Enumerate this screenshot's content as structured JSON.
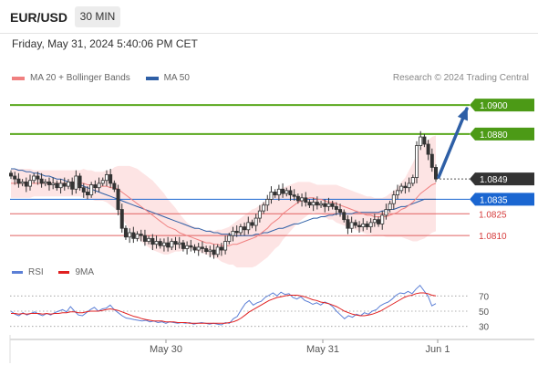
{
  "header": {
    "symbol": "EUR/USD",
    "timeframe": "30 MIN"
  },
  "datetime": "Friday, May 31, 2024 5:40:06 PM CET",
  "legend": {
    "ma20_label": "MA 20 + Bollinger Bands",
    "ma50_label": "MA 50",
    "ma20_color": "#f08080",
    "ma50_color": "#2e5fa6"
  },
  "credit": "Research © 2024 Trading Central",
  "rsi_legend": {
    "rsi_label": "RSI",
    "ma_label": "9MA",
    "rsi_color": "#5b7fd6",
    "ma_color": "#e02020"
  },
  "chart_data": [
    {
      "type": "candlestick",
      "title": "EUR/USD",
      "x_ticks": [
        "May 30",
        "May 31",
        "Jun 1"
      ],
      "ylim": [
        1.0795,
        1.0912
      ],
      "levels": [
        {
          "value": 1.09,
          "label": "1.0900",
          "style": "resistance",
          "color": "#5aa81e"
        },
        {
          "value": 1.088,
          "label": "1.0880",
          "style": "resistance",
          "color": "#5aa81e"
        },
        {
          "value": 1.0849,
          "label": "1.0849",
          "style": "current",
          "color": "#333333"
        },
        {
          "value": 1.0835,
          "label": "1.0835",
          "style": "pivot",
          "color": "#1a66d1"
        },
        {
          "value": 1.0825,
          "label": "1.0825",
          "style": "support",
          "color": "#e06060"
        },
        {
          "value": 1.081,
          "label": "1.0810",
          "style": "support",
          "color": "#e06060"
        }
      ],
      "closes": [
        1.0851,
        1.0849,
        1.0846,
        1.0847,
        1.0844,
        1.0848,
        1.0851,
        1.0849,
        1.0846,
        1.0847,
        1.0845,
        1.0846,
        1.0843,
        1.0846,
        1.0844,
        1.0847,
        1.0842,
        1.0851,
        1.0843,
        1.084,
        1.0838,
        1.0845,
        1.0843,
        1.0846,
        1.0848,
        1.0852,
        1.0846,
        1.0842,
        1.0828,
        1.0815,
        1.0809,
        1.0812,
        1.0808,
        1.0811,
        1.081,
        1.0806,
        1.0808,
        1.0804,
        1.0806,
        1.0803,
        1.0805,
        1.0802,
        1.0806,
        1.0804,
        1.0805,
        1.0801,
        1.0803,
        1.0802,
        1.08,
        1.0802,
        1.0801,
        1.0799,
        1.08,
        1.0797,
        1.0802,
        1.08,
        1.0806,
        1.081,
        1.0813,
        1.0812,
        1.0816,
        1.0814,
        1.0819,
        1.0817,
        1.0822,
        1.0827,
        1.0831,
        1.0835,
        1.084,
        1.0838,
        1.0842,
        1.0839,
        1.0841,
        1.0838,
        1.0837,
        1.0834,
        1.0836,
        1.0833,
        1.0831,
        1.0833,
        1.0831,
        1.0832,
        1.083,
        1.0832,
        1.083,
        1.0828,
        1.0826,
        1.0821,
        1.0815,
        1.0819,
        1.0817,
        1.0816,
        1.0818,
        1.0816,
        1.0819,
        1.0821,
        1.0818,
        1.0824,
        1.0828,
        1.0832,
        1.0838,
        1.0841,
        1.0844,
        1.0843,
        1.0846,
        1.085,
        1.0872,
        1.0878,
        1.0873,
        1.0866,
        1.0857,
        1.0849
      ],
      "ma20": [
        1.0846,
        1.0846,
        1.0846,
        1.0846,
        1.0846,
        1.0846,
        1.0846,
        1.0846,
        1.0846,
        1.0846,
        1.0846,
        1.0846,
        1.0846,
        1.0846,
        1.0846,
        1.0846,
        1.0846,
        1.0846,
        1.0846,
        1.0846,
        1.0845,
        1.0845,
        1.0844,
        1.0844,
        1.0844,
        1.0844,
        1.0843,
        1.0843,
        1.0842,
        1.084,
        1.0838,
        1.0836,
        1.0834,
        1.0832,
        1.083,
        1.0828,
        1.0826,
        1.0824,
        1.0822,
        1.082,
        1.0818,
        1.0816,
        1.0815,
        1.0814,
        1.0812,
        1.0811,
        1.081,
        1.0809,
        1.0808,
        1.0807,
        1.0806,
        1.0805,
        1.0805,
        1.0804,
        1.0804,
        1.0803,
        1.0803,
        1.0803,
        1.0804,
        1.0804,
        1.0805,
        1.0806,
        1.0807,
        1.0808,
        1.0809,
        1.0811,
        1.0813,
        1.0815,
        1.0818,
        1.082,
        1.0822,
        1.0825,
        1.0827,
        1.0829,
        1.0831,
        1.0833,
        1.0834,
        1.0835,
        1.0836,
        1.0836,
        1.0835,
        1.0835,
        1.0834,
        1.0833,
        1.0833,
        1.0832,
        1.0831,
        1.083,
        1.0829,
        1.0828,
        1.0827,
        1.0826,
        1.0825,
        1.0824,
        1.0824,
        1.0823,
        1.0823,
        1.0823,
        1.0823,
        1.0824,
        1.0825,
        1.0826,
        1.0828,
        1.0829,
        1.0831,
        1.0833,
        1.0836,
        1.0839,
        1.0841,
        1.0843,
        1.0845,
        1.0846
      ],
      "ma50": [
        1.0856,
        1.0856,
        1.0855,
        1.0855,
        1.0854,
        1.0854,
        1.0853,
        1.0853,
        1.0852,
        1.0851,
        1.0851,
        1.085,
        1.0849,
        1.0849,
        1.0848,
        1.0847,
        1.0846,
        1.0846,
        1.0845,
        1.0844,
        1.0843,
        1.0842,
        1.0841,
        1.084,
        1.0839,
        1.0838,
        1.0837,
        1.0836,
        1.0835,
        1.0834,
        1.0833,
        1.0832,
        1.0831,
        1.083,
        1.0829,
        1.0828,
        1.0827,
        1.0826,
        1.0825,
        1.0824,
        1.0823,
        1.0822,
        1.0821,
        1.082,
        1.0819,
        1.0818,
        1.0817,
        1.0816,
        1.0815,
        1.0815,
        1.0814,
        1.0813,
        1.0813,
        1.0812,
        1.0812,
        1.0811,
        1.0811,
        1.0811,
        1.081,
        1.081,
        1.081,
        1.081,
        1.081,
        1.081,
        1.0811,
        1.0811,
        1.0812,
        1.0812,
        1.0813,
        1.0814,
        1.0815,
        1.0815,
        1.0816,
        1.0817,
        1.0818,
        1.0818,
        1.0819,
        1.082,
        1.0821,
        1.0822,
        1.0822,
        1.0823,
        1.0823,
        1.0824,
        1.0824,
        1.0825,
        1.0825,
        1.0825,
        1.0825,
        1.0825,
        1.0826,
        1.0826,
        1.0826,
        1.0826,
        1.0826,
        1.0826,
        1.0826,
        1.0827,
        1.0827,
        1.0828,
        1.0828,
        1.0829,
        1.083,
        1.083,
        1.0831,
        1.0832,
        1.0833,
        1.0834,
        1.0835,
        1.0835,
        1.0835,
        1.0835
      ],
      "bb_half_width": [
        0.001,
        0.001,
        0.001,
        0.001,
        0.001,
        0.001,
        0.0009,
        0.0009,
        0.0009,
        0.0009,
        0.0009,
        0.0009,
        0.0009,
        0.0009,
        0.0009,
        0.0009,
        0.0009,
        0.0009,
        0.0009,
        0.001,
        0.001,
        0.001,
        0.001,
        0.001,
        0.001,
        0.0011,
        0.0012,
        0.0014,
        0.0016,
        0.0018,
        0.002,
        0.0022,
        0.0023,
        0.0024,
        0.0024,
        0.0024,
        0.0024,
        0.0024,
        0.0023,
        0.0022,
        0.0021,
        0.0019,
        0.0017,
        0.0015,
        0.0013,
        0.0011,
        0.0009,
        0.0008,
        0.0008,
        0.0008,
        0.0008,
        0.0008,
        0.0009,
        0.0009,
        0.001,
        0.0011,
        0.0012,
        0.0013,
        0.0014,
        0.0016,
        0.0017,
        0.0018,
        0.0019,
        0.002,
        0.002,
        0.002,
        0.002,
        0.002,
        0.002,
        0.0019,
        0.0019,
        0.0018,
        0.0017,
        0.0016,
        0.0015,
        0.0014,
        0.0013,
        0.0012,
        0.0011,
        0.001,
        0.001,
        0.001,
        0.0011,
        0.0012,
        0.0012,
        0.0013,
        0.0013,
        0.0013,
        0.0013,
        0.0013,
        0.0013,
        0.0013,
        0.0013,
        0.0013,
        0.0013,
        0.0013,
        0.0013,
        0.0013,
        0.0014,
        0.0015,
        0.0016,
        0.0017,
        0.0019,
        0.0021,
        0.0024,
        0.0027,
        0.003,
        0.0032,
        0.0033,
        0.0033,
        0.0033,
        0.0033
      ]
    },
    {
      "type": "line",
      "title": "RSI",
      "ylim": [
        20,
        80
      ],
      "y_ticks": [
        70,
        50,
        30
      ],
      "series": [
        {
          "name": "RSI",
          "values": [
            50,
            46,
            44,
            48,
            45,
            47,
            49,
            46,
            44,
            47,
            45,
            48,
            50,
            52,
            49,
            56,
            50,
            45,
            44,
            48,
            52,
            55,
            50,
            53,
            54,
            58,
            52,
            48,
            44,
            41,
            40,
            39,
            38,
            37,
            38,
            36,
            37,
            35,
            36,
            34,
            36,
            35,
            34,
            35,
            34,
            35,
            33,
            34,
            35,
            34,
            33,
            34,
            33,
            32,
            35,
            34,
            40,
            43,
            52,
            60,
            64,
            58,
            61,
            63,
            68,
            71,
            74,
            70,
            75,
            72,
            73,
            68,
            66,
            69,
            64,
            62,
            59,
            61,
            58,
            62,
            60,
            56,
            50,
            45,
            40,
            44,
            42,
            46,
            44,
            48,
            46,
            50,
            52,
            57,
            60,
            62,
            66,
            71,
            74,
            73,
            76,
            73,
            79,
            84,
            77,
            70,
            57,
            60
          ]
        },
        {
          "name": "9MA",
          "values": [
            47,
            47,
            46,
            47,
            46,
            47,
            47,
            47,
            46,
            47,
            46,
            47,
            47,
            48,
            48,
            49,
            49,
            48,
            48,
            49,
            50,
            50,
            50,
            51,
            52,
            53,
            52,
            51,
            49,
            47,
            45,
            43,
            42,
            40,
            39,
            38,
            37,
            37,
            37,
            36,
            36,
            36,
            35,
            35,
            35,
            34,
            34,
            34,
            34,
            34,
            34,
            34,
            34,
            34,
            34,
            35,
            36,
            38,
            41,
            45,
            49,
            52,
            55,
            58,
            61,
            64,
            66,
            68,
            69,
            70,
            71,
            71,
            71,
            70,
            69,
            67,
            65,
            64,
            62,
            61,
            60,
            58,
            56,
            53,
            50,
            48,
            46,
            45,
            44,
            44,
            45,
            46,
            48,
            50,
            53,
            56,
            59,
            62,
            65,
            68,
            70,
            71,
            73,
            74,
            74,
            73,
            71,
            70
          ]
        }
      ]
    }
  ]
}
